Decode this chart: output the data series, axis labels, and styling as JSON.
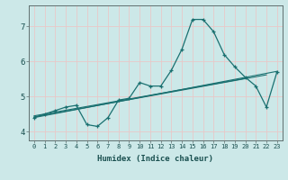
{
  "xlabel": "Humidex (Indice chaleur)",
  "background_color": "#cce8e8",
  "grid_color": "#e8c8c8",
  "line_color": "#1a7070",
  "x_data": [
    0,
    1,
    2,
    3,
    4,
    5,
    6,
    7,
    8,
    9,
    10,
    11,
    12,
    13,
    14,
    15,
    16,
    17,
    18,
    19,
    20,
    21,
    22,
    23
  ],
  "series1": [
    4.4,
    4.5,
    4.6,
    4.7,
    4.75,
    4.2,
    4.15,
    4.4,
    4.9,
    4.95,
    5.4,
    5.3,
    5.3,
    5.75,
    6.35,
    7.2,
    7.2,
    6.85,
    6.2,
    5.85,
    5.55,
    5.3,
    4.7,
    5.7
  ],
  "trend1_x": [
    0,
    23
  ],
  "trend1_y": [
    4.4,
    5.72
  ],
  "trend2_x": [
    0,
    22
  ],
  "trend2_y": [
    4.42,
    5.62
  ],
  "trend3_x": [
    0,
    20
  ],
  "trend3_y": [
    4.45,
    5.52
  ],
  "xlim": [
    -0.5,
    23.5
  ],
  "ylim": [
    3.75,
    7.6
  ],
  "yticks": [
    4,
    5,
    6,
    7
  ],
  "xticks": [
    0,
    1,
    2,
    3,
    4,
    5,
    6,
    7,
    8,
    9,
    10,
    11,
    12,
    13,
    14,
    15,
    16,
    17,
    18,
    19,
    20,
    21,
    22,
    23
  ]
}
